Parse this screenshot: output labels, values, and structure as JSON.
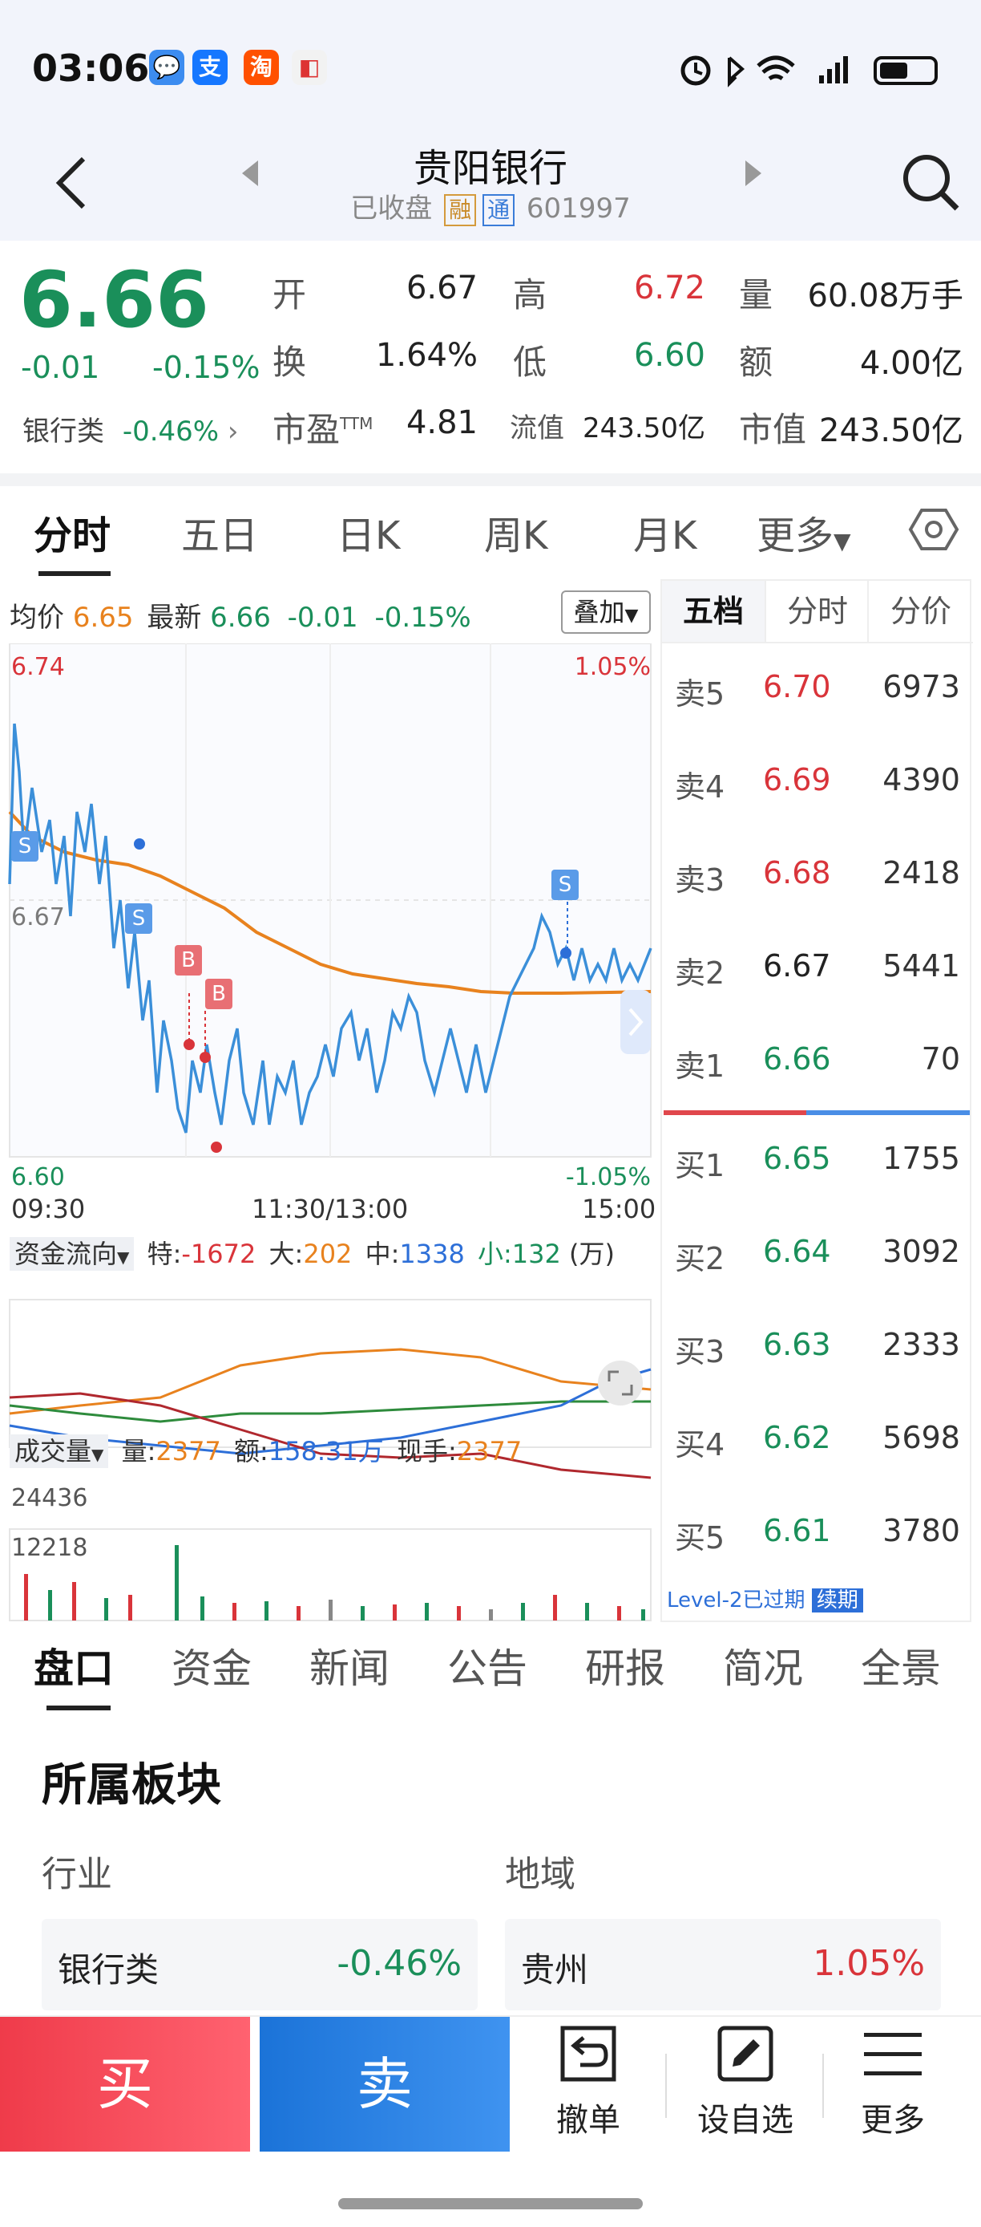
{
  "status": {
    "time": "03:06",
    "apps": [
      "💬",
      "支",
      "淘",
      "◧"
    ]
  },
  "header": {
    "title": "贵阳银行",
    "state": "已收盘",
    "tag1": "融",
    "tag2": "通",
    "code": "601997"
  },
  "quote": {
    "price": "6.66",
    "change": "-0.01",
    "change_pct": "-0.15%",
    "sector_name": "银行类",
    "sector_pct": "-0.46%",
    "open_label": "开",
    "open": "6.67",
    "high_label": "高",
    "high": "6.72",
    "vol_label": "量",
    "vol": "60.08万手",
    "turnover_label": "换",
    "turnover": "1.64%",
    "low_label": "低",
    "low": "6.60",
    "amount_label": "额",
    "amount": "4.00亿",
    "pe_label": "市盈",
    "pe_sup": "TTM",
    "pe": "4.81",
    "float_cap_label": "流值",
    "float_cap": "243.50亿",
    "mkt_cap_label": "市值",
    "mkt_cap": "243.50亿"
  },
  "chart_tabs": [
    "分时",
    "五日",
    "日K",
    "周K",
    "月K",
    "更多"
  ],
  "intraday": {
    "avg_label": "均价",
    "avg": "6.65",
    "latest_label": "最新",
    "latest": "6.66",
    "change": "-0.01",
    "change_pct": "-0.15%",
    "overlay_btn": "叠加",
    "y_top": "6.74",
    "y_mid": "6.67",
    "y_bottom": "6.60",
    "pct_top": "1.05%",
    "pct_bottom": "-1.05%",
    "x_start": "09:30",
    "x_mid": "11:30/13:00",
    "x_end": "15:00",
    "markers": [
      "S",
      "S",
      "B",
      "B",
      "S"
    ]
  },
  "fund_flow": {
    "label": "资金流向",
    "te_label": "特:",
    "te": "-1672",
    "da_label": "大:",
    "da": "202",
    "zhong_label": "中:",
    "zhong": "1338",
    "xiao_label": "小:",
    "xiao": "132",
    "unit": "(万)"
  },
  "volume": {
    "label": "成交量",
    "vol_label": "量:",
    "vol": "2377",
    "amt_label": "额:",
    "amt": "158.31万",
    "now_label": "现手:",
    "now": "2377",
    "y_top": "24436",
    "y_mid": "12218"
  },
  "orderbook": {
    "tabs": [
      "五档",
      "分时",
      "分价"
    ],
    "asks": [
      {
        "label": "卖5",
        "price": "6.70",
        "vol": "6973"
      },
      {
        "label": "卖4",
        "price": "6.69",
        "vol": "4390"
      },
      {
        "label": "卖3",
        "price": "6.68",
        "vol": "2418"
      },
      {
        "label": "卖2",
        "price": "6.67",
        "vol": "5441"
      },
      {
        "label": "卖1",
        "price": "6.66",
        "vol": "70"
      }
    ],
    "bids": [
      {
        "label": "买1",
        "price": "6.65",
        "vol": "1755"
      },
      {
        "label": "买2",
        "price": "6.64",
        "vol": "3092"
      },
      {
        "label": "买3",
        "price": "6.63",
        "vol": "2333"
      },
      {
        "label": "买4",
        "price": "6.62",
        "vol": "5698"
      },
      {
        "label": "买5",
        "price": "6.61",
        "vol": "3780"
      }
    ],
    "level2_text": "Level-2已过期",
    "renew": "续期"
  },
  "bottom_tabs": [
    "盘口",
    "资金",
    "新闻",
    "公告",
    "研报",
    "简况",
    "全景"
  ],
  "sector": {
    "title": "所属板块",
    "industry_label": "行业",
    "region_label": "地域",
    "industry_name": "银行类",
    "industry_pct": "-0.46%",
    "region_name": "贵州",
    "region_pct": "1.05%"
  },
  "actions": {
    "buy": "买",
    "sell": "卖",
    "cancel": "撤单",
    "watch": "设自选",
    "more": "更多"
  }
}
